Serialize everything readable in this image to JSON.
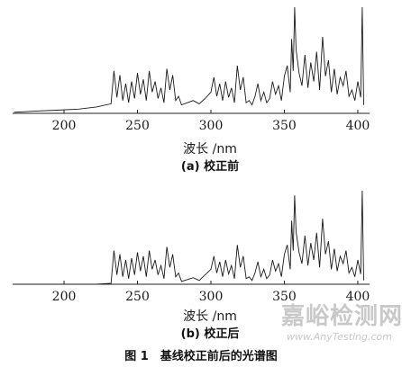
{
  "figure_caption": "图 1　基线校正前后的光谱图",
  "watermark": {
    "main": "嘉峪检测网",
    "sub": "www.AnyTesting.com"
  },
  "chart_data": [
    {
      "type": "line",
      "caption": "(a) 校正前",
      "xlabel": "波长 /nm",
      "ylabel": "",
      "xlim": [
        165,
        408
      ],
      "ylim": [
        0,
        1
      ],
      "xticks": [
        200,
        250,
        300,
        350,
        400
      ],
      "grid": false,
      "series": [
        {
          "x": [
            166,
            180,
            195,
            210,
            222,
            232,
            234,
            236,
            238,
            240,
            242,
            244,
            246,
            248,
            250,
            252,
            254,
            256,
            258,
            260,
            262,
            264,
            266,
            268,
            270,
            272,
            274,
            276,
            278,
            280,
            284,
            288,
            292,
            296,
            300,
            302,
            304,
            306,
            308,
            310,
            312,
            314,
            316,
            318,
            320,
            322,
            324,
            326,
            328,
            330,
            332,
            334,
            336,
            338,
            340,
            342,
            344,
            346,
            348,
            350,
            352,
            354,
            355,
            356,
            357,
            358,
            360,
            362,
            364,
            366,
            368,
            370,
            372,
            374,
            376,
            378,
            380,
            382,
            384,
            386,
            388,
            390,
            392,
            394,
            396,
            398,
            400,
            402,
            403,
            404
          ],
          "y": [
            0.01,
            0.02,
            0.03,
            0.04,
            0.06,
            0.09,
            0.4,
            0.15,
            0.36,
            0.12,
            0.28,
            0.1,
            0.3,
            0.14,
            0.38,
            0.18,
            0.32,
            0.12,
            0.4,
            0.2,
            0.3,
            0.14,
            0.24,
            0.1,
            0.42,
            0.22,
            0.36,
            0.12,
            0.16,
            0.08,
            0.1,
            0.12,
            0.09,
            0.14,
            0.2,
            0.34,
            0.16,
            0.28,
            0.12,
            0.3,
            0.15,
            0.24,
            0.1,
            0.45,
            0.22,
            0.34,
            0.1,
            0.12,
            0.08,
            0.16,
            0.28,
            0.12,
            0.2,
            0.1,
            0.14,
            0.3,
            0.18,
            0.26,
            0.12,
            0.35,
            0.45,
            0.2,
            0.7,
            0.4,
            1.0,
            0.6,
            0.38,
            0.26,
            0.55,
            0.24,
            0.48,
            0.3,
            0.58,
            0.22,
            0.72,
            0.35,
            0.5,
            0.2,
            0.42,
            0.18,
            0.34,
            0.26,
            0.4,
            0.16,
            0.22,
            0.12,
            0.3,
            0.15,
            1.0,
            0.08
          ]
        }
      ]
    },
    {
      "type": "line",
      "caption": "(b) 校正后",
      "xlabel": "波长 /nm",
      "ylabel": "",
      "xlim": [
        165,
        408
      ],
      "ylim": [
        0,
        1
      ],
      "xticks": [
        200,
        250,
        300,
        350,
        400
      ],
      "grid": false,
      "series": [
        {
          "x": [
            166,
            180,
            195,
            210,
            222,
            232,
            234,
            236,
            238,
            240,
            242,
            244,
            246,
            248,
            250,
            252,
            254,
            256,
            258,
            260,
            262,
            264,
            266,
            268,
            270,
            272,
            274,
            276,
            278,
            280,
            284,
            288,
            292,
            296,
            300,
            302,
            304,
            306,
            308,
            310,
            312,
            314,
            316,
            318,
            320,
            322,
            324,
            326,
            328,
            330,
            332,
            334,
            336,
            338,
            340,
            342,
            344,
            346,
            348,
            350,
            352,
            354,
            355,
            356,
            357,
            358,
            360,
            362,
            364,
            366,
            368,
            370,
            372,
            374,
            376,
            378,
            380,
            382,
            384,
            386,
            388,
            390,
            392,
            394,
            396,
            398,
            400,
            402,
            403,
            404
          ],
          "y": [
            0.0,
            0.0,
            0.0,
            0.0,
            0.0,
            0.01,
            0.36,
            0.1,
            0.32,
            0.08,
            0.26,
            0.06,
            0.28,
            0.1,
            0.34,
            0.14,
            0.3,
            0.08,
            0.36,
            0.16,
            0.26,
            0.1,
            0.2,
            0.06,
            0.4,
            0.18,
            0.32,
            0.08,
            0.12,
            0.03,
            0.05,
            0.07,
            0.04,
            0.1,
            0.16,
            0.3,
            0.12,
            0.24,
            0.08,
            0.26,
            0.11,
            0.2,
            0.06,
            0.42,
            0.18,
            0.3,
            0.06,
            0.08,
            0.04,
            0.12,
            0.24,
            0.08,
            0.16,
            0.06,
            0.1,
            0.26,
            0.14,
            0.22,
            0.08,
            0.32,
            0.42,
            0.16,
            0.68,
            0.36,
            0.95,
            0.56,
            0.34,
            0.22,
            0.52,
            0.2,
            0.44,
            0.26,
            0.55,
            0.18,
            0.7,
            0.32,
            0.46,
            0.16,
            0.38,
            0.14,
            0.3,
            0.22,
            0.36,
            0.12,
            0.18,
            0.08,
            0.26,
            0.11,
            1.0,
            0.04
          ]
        }
      ]
    }
  ]
}
